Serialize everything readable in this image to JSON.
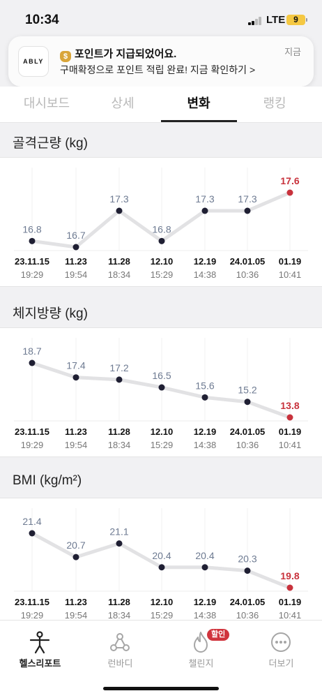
{
  "status_bar": {
    "time": "10:34",
    "network": "LTE",
    "battery": "9"
  },
  "notification": {
    "app": "ABLY",
    "icon": "money-bag-icon",
    "title": "포인트가 지급되었어요.",
    "body": "구매확정으로 포인트 적립 완료! 지금 확인하기 >",
    "time": "지금"
  },
  "tabs": [
    {
      "label": "대시보드",
      "active": false
    },
    {
      "label": "상세",
      "active": false
    },
    {
      "label": "변화",
      "active": true
    },
    {
      "label": "랭킹",
      "active": false
    }
  ],
  "colors": {
    "accent": "#c8323c",
    "point": "#1f1f33",
    "line": "#e2e2e4",
    "label": "#6d7a91"
  },
  "chart_data": [
    {
      "type": "line",
      "title": "골격근량 (kg)",
      "categories": [
        "23.11.15",
        "11.23",
        "11.28",
        "12.10",
        "12.19",
        "24.01.05",
        "01.19"
      ],
      "times": [
        "19:29",
        "19:54",
        "18:34",
        "15:29",
        "14:38",
        "10:36",
        "10:41"
      ],
      "values": [
        16.8,
        16.7,
        17.3,
        16.8,
        17.3,
        17.3,
        17.6
      ],
      "labels": [
        "16.8",
        "16.7",
        "17.3",
        "16.8",
        "17.3",
        "17.3",
        "17.6"
      ],
      "highlight_index": 6
    },
    {
      "type": "line",
      "title": "체지방량 (kg)",
      "categories": [
        "23.11.15",
        "11.23",
        "11.28",
        "12.10",
        "12.19",
        "24.01.05",
        "01.19"
      ],
      "times": [
        "19:29",
        "19:54",
        "18:34",
        "15:29",
        "14:38",
        "10:36",
        "10:41"
      ],
      "values": [
        18.7,
        17.4,
        17.2,
        16.5,
        15.6,
        15.2,
        13.8
      ],
      "labels": [
        "18.7",
        "17.4",
        "17.2",
        "16.5",
        "15.6",
        "15.2",
        "13.8"
      ],
      "highlight_index": 6
    },
    {
      "type": "line",
      "title": "BMI (kg/m²)",
      "categories": [
        "23.11.15",
        "11.23",
        "11.28",
        "12.10",
        "12.19",
        "24.01.05",
        "01.19"
      ],
      "times": [
        "19:29",
        "19:54",
        "18:34",
        "15:29",
        "14:38",
        "10:36",
        "10:41"
      ],
      "values": [
        21.4,
        20.7,
        21.1,
        20.4,
        20.4,
        20.3,
        19.8
      ],
      "labels": [
        "21.4",
        "20.7",
        "21.1",
        "20.4",
        "20.4",
        "20.3",
        "19.8"
      ],
      "highlight_index": 6
    }
  ],
  "bottom_nav": [
    {
      "label": "헬스리포트",
      "icon": "health-report-icon",
      "active": true
    },
    {
      "label": "런바디",
      "icon": "runbody-icon",
      "active": false
    },
    {
      "label": "챌린지",
      "icon": "flame-icon",
      "active": false,
      "badge": "할인"
    },
    {
      "label": "더보기",
      "icon": "more-dots-icon",
      "active": false
    }
  ]
}
